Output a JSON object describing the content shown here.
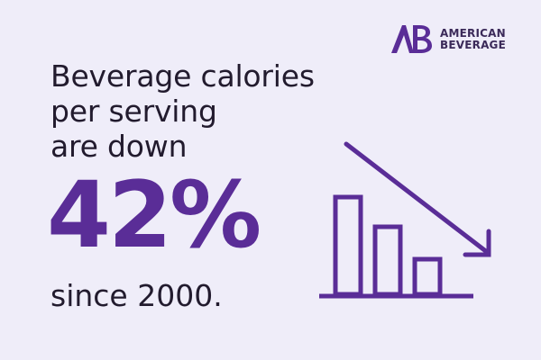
{
  "brand": {
    "line1": "AMERICAN",
    "line2": "BEVERAGE",
    "mark": "AB",
    "color": "#5a2d97"
  },
  "headline": {
    "line1": "Beverage calories",
    "line2": "per serving",
    "line3": "are down"
  },
  "stat": {
    "value": "42%",
    "color": "#5a2d97"
  },
  "since": "since 2000.",
  "icon": {
    "name": "declining-bar-chart-icon",
    "bars_relative_heights": [
      1.0,
      0.68,
      0.35
    ],
    "color": "#5a2d97"
  },
  "colors": {
    "background": "#efedf9",
    "text": "#221b2e"
  }
}
